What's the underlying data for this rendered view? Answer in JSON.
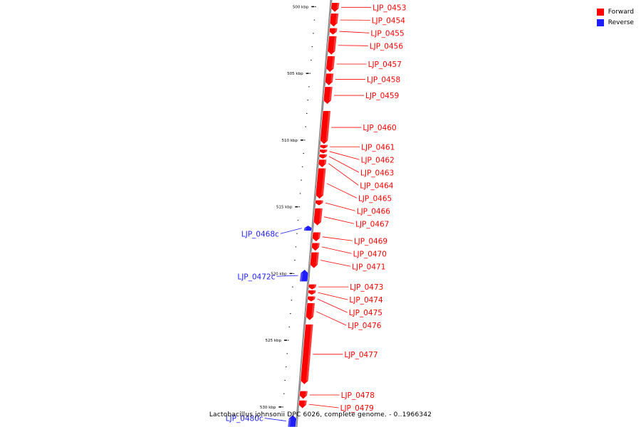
{
  "colors": {
    "forward": "#ff0000",
    "reverse": "#1e1eff",
    "axis": "#909090",
    "tick": "#000000"
  },
  "legend": {
    "forward": "Forward",
    "reverse": "Reverse"
  },
  "caption": "Lactobacillus johnsonii DPC 6026, complete genome. - 0..1966342",
  "scale": {
    "unit": "kbp",
    "labels": [
      {
        "kbp": 500,
        "text": "500 kbp"
      },
      {
        "kbp": 505,
        "text": "505 kbp"
      },
      {
        "kbp": 510,
        "text": "510 kbp"
      },
      {
        "kbp": 515,
        "text": "515 kbp"
      },
      {
        "kbp": 520,
        "text": "520 kbp"
      },
      {
        "kbp": 525,
        "text": "525 kbp"
      },
      {
        "kbp": 530,
        "text": "530 kbp"
      }
    ]
  },
  "genes": [
    {
      "name": "LJP_0453",
      "strand": "forward",
      "start_kbp": 499.7,
      "end_kbp": 500.4
    },
    {
      "name": "LJP_0454",
      "strand": "forward",
      "start_kbp": 500.5,
      "end_kbp": 501.5
    },
    {
      "name": "LJP_0455",
      "strand": "forward",
      "start_kbp": 501.6,
      "end_kbp": 502.1
    },
    {
      "name": "LJP_0456",
      "strand": "forward",
      "start_kbp": 502.2,
      "end_kbp": 503.6
    },
    {
      "name": "LJP_0457",
      "strand": "forward",
      "start_kbp": 503.7,
      "end_kbp": 504.9
    },
    {
      "name": "LJP_0458",
      "strand": "forward",
      "start_kbp": 505.0,
      "end_kbp": 505.9
    },
    {
      "name": "LJP_0459",
      "strand": "forward",
      "start_kbp": 506.0,
      "end_kbp": 507.3
    },
    {
      "name": "LJP_0460",
      "strand": "forward",
      "start_kbp": 507.8,
      "end_kbp": 510.3
    },
    {
      "name": "LJP_0461",
      "strand": "forward",
      "start_kbp": 510.35,
      "end_kbp": 510.65
    },
    {
      "name": "LJP_0462",
      "strand": "forward",
      "start_kbp": 510.7,
      "end_kbp": 511.0
    },
    {
      "name": "LJP_0463",
      "strand": "forward",
      "start_kbp": 511.05,
      "end_kbp": 511.4
    },
    {
      "name": "LJP_0464",
      "strand": "forward",
      "start_kbp": 511.45,
      "end_kbp": 512.05
    },
    {
      "name": "LJP_0465",
      "strand": "forward",
      "start_kbp": 512.1,
      "end_kbp": 514.4
    },
    {
      "name": "LJP_0466",
      "strand": "forward",
      "start_kbp": 514.5,
      "end_kbp": 514.9
    },
    {
      "name": "LJP_0467",
      "strand": "forward",
      "start_kbp": 515.1,
      "end_kbp": 516.4
    },
    {
      "name": "LJP_0468c",
      "strand": "reverse",
      "start_kbp": 516.4,
      "end_kbp": 516.8
    },
    {
      "name": "LJP_0469",
      "strand": "forward",
      "start_kbp": 516.9,
      "end_kbp": 517.6
    },
    {
      "name": "LJP_0470",
      "strand": "forward",
      "start_kbp": 517.7,
      "end_kbp": 518.3
    },
    {
      "name": "LJP_0471",
      "strand": "forward",
      "start_kbp": 518.4,
      "end_kbp": 519.6
    },
    {
      "name": "LJP_0472c",
      "strand": "reverse",
      "start_kbp": 519.7,
      "end_kbp": 520.6
    },
    {
      "name": "LJP_0473",
      "strand": "forward",
      "start_kbp": 520.8,
      "end_kbp": 521.2
    },
    {
      "name": "LJP_0474",
      "strand": "forward",
      "start_kbp": 521.25,
      "end_kbp": 521.6
    },
    {
      "name": "LJP_0475",
      "strand": "forward",
      "start_kbp": 521.7,
      "end_kbp": 522.1
    },
    {
      "name": "LJP_0476",
      "strand": "forward",
      "start_kbp": 522.2,
      "end_kbp": 523.5
    },
    {
      "name": "LJP_0477",
      "strand": "forward",
      "start_kbp": 523.8,
      "end_kbp": 528.3
    },
    {
      "name": "LJP_0478",
      "strand": "forward",
      "start_kbp": 528.8,
      "end_kbp": 529.4
    },
    {
      "name": "LJP_0479",
      "strand": "forward",
      "start_kbp": 529.5,
      "end_kbp": 530.1
    },
    {
      "name": "LJP_0480c",
      "strand": "reverse",
      "start_kbp": 530.6,
      "end_kbp": 531.5
    }
  ]
}
